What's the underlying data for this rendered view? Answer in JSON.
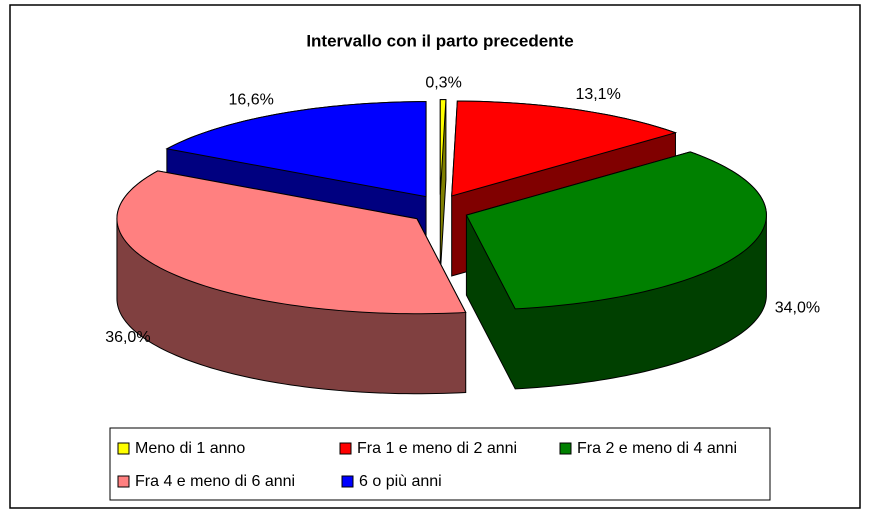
{
  "chart_data": {
    "type": "pie3d",
    "title": "Intervallo con il parto precedente",
    "categories": [
      "Meno di 1 anno",
      "Fra 1 e meno di 2 anni",
      "Fra 2 e meno di 4 anni",
      "Fra 4 e meno di 6 anni",
      "6 o più anni"
    ],
    "values": [
      0.3,
      13.1,
      34.0,
      36.0,
      16.6
    ],
    "value_labels": [
      "0,3%",
      "13,1%",
      "34,0%",
      "36,0%",
      "16,6%"
    ],
    "colors": [
      "#ffff00",
      "#ff0000",
      "#008000",
      "#ff8080",
      "#0000ff"
    ],
    "legend": "bottom"
  }
}
